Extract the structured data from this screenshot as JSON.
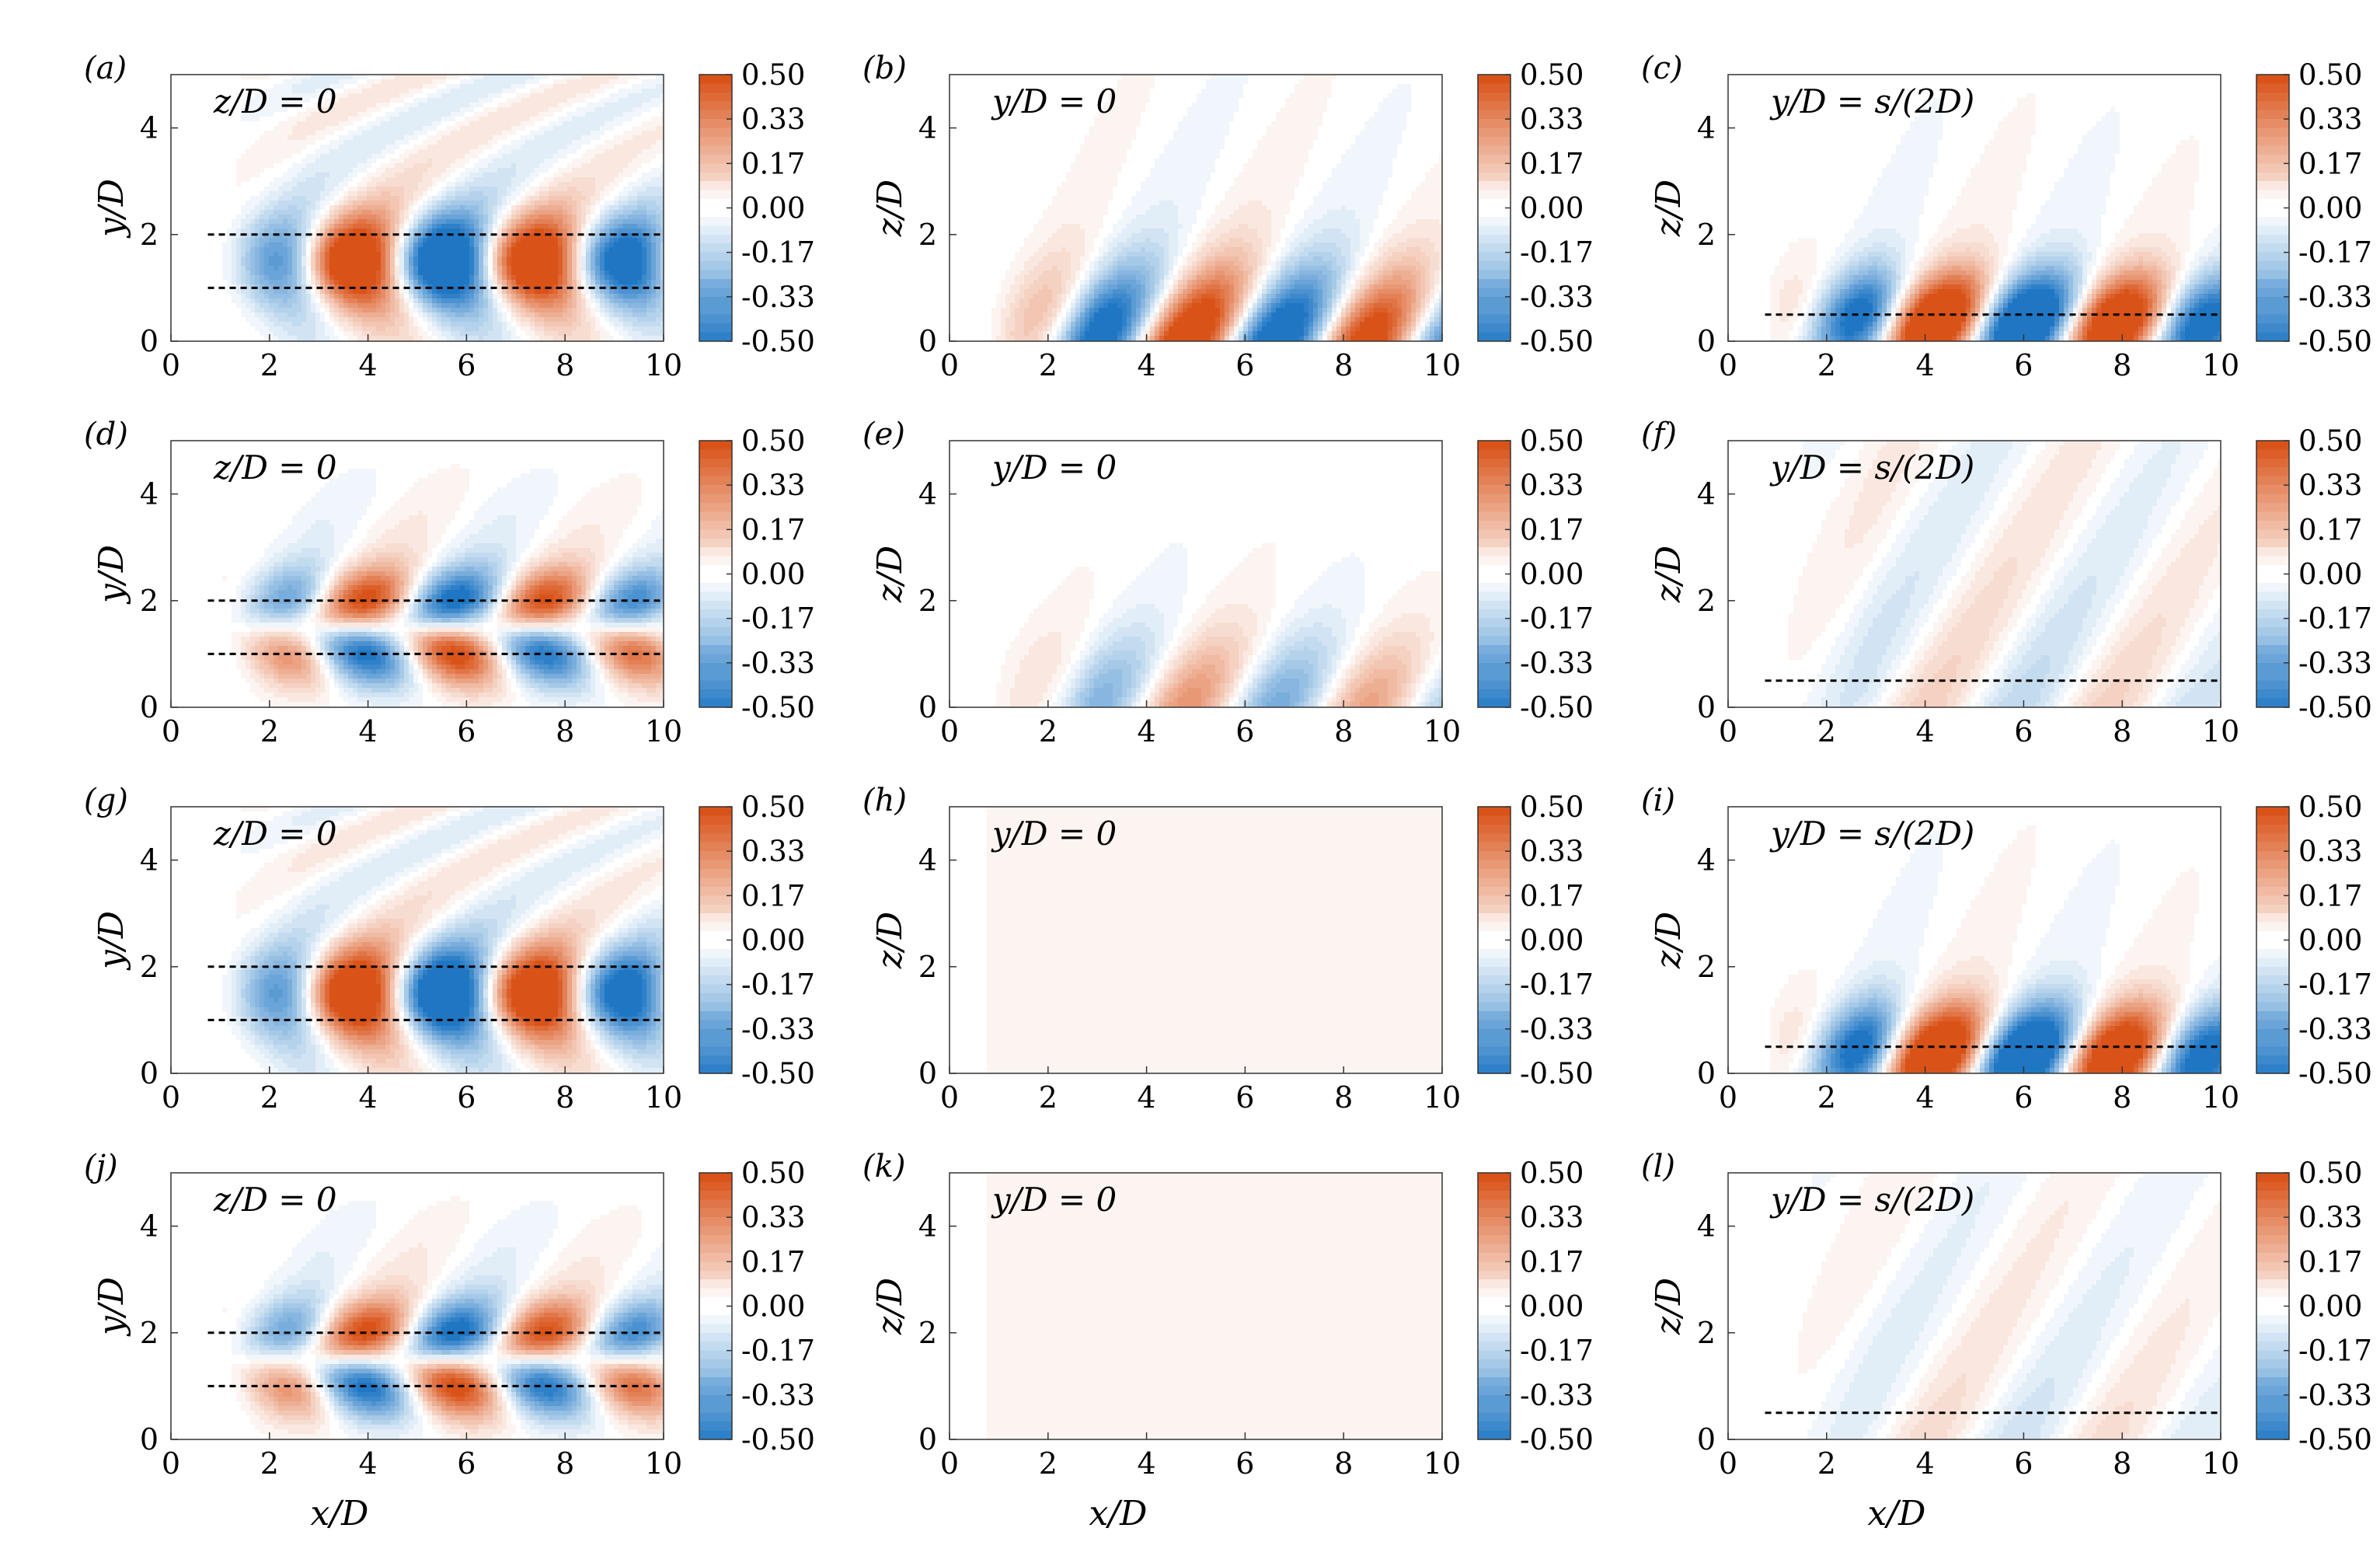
{
  "figure": {
    "title": "",
    "rows": 4,
    "cols": 3
  },
  "colormap": {
    "negative_color": "#1f77c4",
    "zero_color": "#ffffff",
    "positive_color": "#d95319",
    "levels": 30
  },
  "colorbar": {
    "ticks": [
      "0.50",
      "0.33",
      "0.17",
      "0.00",
      "-0.17",
      "-0.33",
      "-0.50"
    ]
  },
  "axes": {
    "xticks": [
      "0",
      "2",
      "4",
      "6",
      "8",
      "10"
    ],
    "yticks": [
      "0",
      "2",
      "4"
    ],
    "xlabel": "x/D"
  },
  "chart_data": [
    {
      "type": "heatmap",
      "panel_label": "(a)",
      "annotation": "z/D = 0",
      "ylabel": "y/D",
      "xlim": [
        0,
        10
      ],
      "ylim": [
        0,
        5
      ],
      "clim": [
        -0.5,
        0.5
      ],
      "field": "yplane_symmetric",
      "amplitude": 1.0,
      "dashed_lines": [
        1.0,
        2.0
      ]
    },
    {
      "type": "heatmap",
      "panel_label": "(b)",
      "annotation": "y/D = 0",
      "ylabel": "z/D",
      "xlim": [
        0,
        10
      ],
      "ylim": [
        0,
        5
      ],
      "clim": [
        -0.5,
        0.5
      ],
      "field": "zplane_centre",
      "amplitude": 1.0,
      "dashed_lines": []
    },
    {
      "type": "heatmap",
      "panel_label": "(c)",
      "annotation": "y/D = s/(2D)",
      "ylabel": "z/D",
      "xlim": [
        0,
        10
      ],
      "ylim": [
        0,
        5
      ],
      "clim": [
        -0.5,
        0.5
      ],
      "field": "zplane_wall",
      "amplitude": 1.0,
      "dashed_lines": [
        0.5
      ]
    },
    {
      "type": "heatmap",
      "panel_label": "(d)",
      "annotation": "z/D = 0",
      "ylabel": "y/D",
      "xlim": [
        0,
        10
      ],
      "ylim": [
        0,
        5
      ],
      "clim": [
        -0.5,
        0.5
      ],
      "field": "yplane_antisymmetric",
      "amplitude": 1.0,
      "dashed_lines": [
        1.0,
        2.0
      ]
    },
    {
      "type": "heatmap",
      "panel_label": "(e)",
      "annotation": "y/D = 0",
      "ylabel": "z/D",
      "xlim": [
        0,
        10
      ],
      "ylim": [
        0,
        5
      ],
      "clim": [
        -0.5,
        0.5
      ],
      "field": "zplane_centre",
      "amplitude": 0.45,
      "dashed_lines": []
    },
    {
      "type": "heatmap",
      "panel_label": "(f)",
      "annotation": "y/D = s/(2D)",
      "ylabel": "z/D",
      "xlim": [
        0,
        10
      ],
      "ylim": [
        0,
        5
      ],
      "clim": [
        -0.5,
        0.5
      ],
      "field": "zplane_weak",
      "amplitude": 0.2,
      "dashed_lines": [
        0.5
      ]
    },
    {
      "type": "heatmap",
      "panel_label": "(g)",
      "annotation": "z/D = 0",
      "ylabel": "y/D",
      "xlim": [
        0,
        10
      ],
      "ylim": [
        0,
        5
      ],
      "clim": [
        -0.5,
        0.5
      ],
      "field": "yplane_symmetric",
      "amplitude": 1.0,
      "dashed_lines": [
        1.0,
        2.0
      ]
    },
    {
      "type": "heatmap",
      "panel_label": "(h)",
      "annotation": "y/D = 0",
      "ylabel": "z/D",
      "xlim": [
        0,
        10
      ],
      "ylim": [
        0,
        5
      ],
      "clim": [
        -0.5,
        0.5
      ],
      "field": "uniform",
      "amplitude": 0.05,
      "dashed_lines": []
    },
    {
      "type": "heatmap",
      "panel_label": "(i)",
      "annotation": "y/D = s/(2D)",
      "ylabel": "z/D",
      "xlim": [
        0,
        10
      ],
      "ylim": [
        0,
        5
      ],
      "clim": [
        -0.5,
        0.5
      ],
      "field": "zplane_wall",
      "amplitude": 1.0,
      "dashed_lines": [
        0.5
      ]
    },
    {
      "type": "heatmap",
      "panel_label": "(j)",
      "annotation": "z/D = 0",
      "ylabel": "y/D",
      "xlim": [
        0,
        10
      ],
      "ylim": [
        0,
        5
      ],
      "clim": [
        -0.5,
        0.5
      ],
      "field": "yplane_antisymmetric",
      "amplitude": 1.0,
      "dashed_lines": [
        1.0,
        2.0
      ]
    },
    {
      "type": "heatmap",
      "panel_label": "(k)",
      "annotation": "y/D = 0",
      "ylabel": "z/D",
      "xlim": [
        0,
        10
      ],
      "ylim": [
        0,
        5
      ],
      "clim": [
        -0.5,
        0.5
      ],
      "field": "uniform",
      "amplitude": 0.05,
      "dashed_lines": []
    },
    {
      "type": "heatmap",
      "panel_label": "(l)",
      "annotation": "y/D = s/(2D)",
      "ylabel": "z/D",
      "xlim": [
        0,
        10
      ],
      "ylim": [
        0,
        5
      ],
      "clim": [
        -0.5,
        0.5
      ],
      "field": "zplane_weak",
      "amplitude": 0.15,
      "dashed_lines": [
        0.5
      ]
    }
  ]
}
